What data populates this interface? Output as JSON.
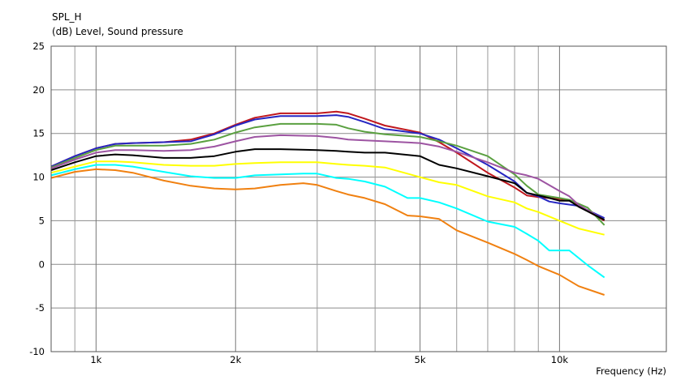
{
  "chart_data": {
    "type": "line",
    "title": "SPL_H",
    "ylabel": "(dB)  Level, Sound pressure",
    "xlabel": "Frequency  (Hz)",
    "x_scale": "log",
    "xlim": [
      800,
      17000
    ],
    "ylim": [
      -10,
      25
    ],
    "x_ticks": [
      {
        "value": 1000,
        "label": "1k"
      },
      {
        "value": 2000,
        "label": "2k"
      },
      {
        "value": 5000,
        "label": "5k"
      },
      {
        "value": 10000,
        "label": "10k"
      }
    ],
    "y_ticks": [
      {
        "value": 25,
        "label": "25"
      },
      {
        "value": 20,
        "label": "20"
      },
      {
        "value": 15,
        "label": "15"
      },
      {
        "value": 10,
        "label": "10"
      },
      {
        "value": 5,
        "label": "5"
      },
      {
        "value": 0,
        "label": "0"
      },
      {
        "value": -5,
        "label": "-5"
      },
      {
        "value": -10,
        "label": "-10"
      }
    ],
    "x_gridlines": [
      900,
      1000,
      2000,
      3000,
      4000,
      5000,
      6000,
      7000,
      8000,
      9000,
      10000
    ],
    "y_gridlines": [
      25,
      20,
      15,
      10,
      5,
      0,
      -5,
      -10
    ],
    "grid": true,
    "legend": "none",
    "series": [
      {
        "color": "#c0171d",
        "points": [
          [
            800,
            11.2
          ],
          [
            900,
            12.4
          ],
          [
            1000,
            13.3
          ],
          [
            1100,
            13.8
          ],
          [
            1200,
            13.9
          ],
          [
            1400,
            14.0
          ],
          [
            1600,
            14.3
          ],
          [
            1800,
            15.0
          ],
          [
            2000,
            16.0
          ],
          [
            2200,
            16.8
          ],
          [
            2500,
            17.3
          ],
          [
            3000,
            17.3
          ],
          [
            3300,
            17.5
          ],
          [
            3500,
            17.3
          ],
          [
            3800,
            16.7
          ],
          [
            4200,
            15.9
          ],
          [
            5000,
            15.1
          ],
          [
            5500,
            14.0
          ],
          [
            6000,
            12.8
          ],
          [
            7000,
            10.5
          ],
          [
            8000,
            8.8
          ],
          [
            8500,
            7.9
          ],
          [
            9000,
            7.7
          ],
          [
            10000,
            7.5
          ],
          [
            10500,
            7.3
          ],
          [
            11500,
            6.1
          ],
          [
            12500,
            5.0
          ]
        ]
      },
      {
        "color": "#2626c2",
        "points": [
          [
            800,
            11.2
          ],
          [
            900,
            12.4
          ],
          [
            1000,
            13.3
          ],
          [
            1100,
            13.8
          ],
          [
            1200,
            13.9
          ],
          [
            1400,
            14.0
          ],
          [
            1600,
            14.1
          ],
          [
            1800,
            14.9
          ],
          [
            2000,
            15.9
          ],
          [
            2200,
            16.6
          ],
          [
            2500,
            17.0
          ],
          [
            3000,
            17.0
          ],
          [
            3300,
            17.1
          ],
          [
            3500,
            16.9
          ],
          [
            3800,
            16.3
          ],
          [
            4200,
            15.5
          ],
          [
            5000,
            15.0
          ],
          [
            5500,
            14.3
          ],
          [
            6000,
            13.3
          ],
          [
            7000,
            11.4
          ],
          [
            8000,
            9.5
          ],
          [
            8500,
            8.2
          ],
          [
            9000,
            7.8
          ],
          [
            9500,
            7.2
          ],
          [
            10000,
            7.0
          ],
          [
            11000,
            6.7
          ],
          [
            12500,
            5.3
          ]
        ]
      },
      {
        "color": "#5aa040",
        "points": [
          [
            800,
            11.1
          ],
          [
            900,
            12.2
          ],
          [
            1000,
            13.1
          ],
          [
            1100,
            13.6
          ],
          [
            1200,
            13.6
          ],
          [
            1400,
            13.6
          ],
          [
            1600,
            13.8
          ],
          [
            1800,
            14.3
          ],
          [
            2000,
            15.1
          ],
          [
            2200,
            15.7
          ],
          [
            2500,
            16.1
          ],
          [
            3000,
            16.1
          ],
          [
            3300,
            16.0
          ],
          [
            3500,
            15.6
          ],
          [
            3800,
            15.2
          ],
          [
            4200,
            14.9
          ],
          [
            5000,
            14.6
          ],
          [
            5500,
            14.1
          ],
          [
            6000,
            13.6
          ],
          [
            7000,
            12.4
          ],
          [
            8000,
            10.3
          ],
          [
            8500,
            9.0
          ],
          [
            9000,
            8.0
          ],
          [
            10000,
            7.6
          ],
          [
            10500,
            7.4
          ],
          [
            11500,
            6.5
          ],
          [
            12500,
            4.5
          ]
        ]
      },
      {
        "color": "#9d54a2",
        "points": [
          [
            800,
            11.0
          ],
          [
            900,
            12.0
          ],
          [
            1000,
            12.8
          ],
          [
            1100,
            13.1
          ],
          [
            1200,
            13.1
          ],
          [
            1400,
            13.0
          ],
          [
            1600,
            13.1
          ],
          [
            1800,
            13.5
          ],
          [
            2000,
            14.1
          ],
          [
            2200,
            14.6
          ],
          [
            2500,
            14.8
          ],
          [
            3000,
            14.7
          ],
          [
            3300,
            14.5
          ],
          [
            3500,
            14.3
          ],
          [
            3800,
            14.2
          ],
          [
            4200,
            14.1
          ],
          [
            5000,
            13.9
          ],
          [
            5500,
            13.5
          ],
          [
            6000,
            12.9
          ],
          [
            7000,
            11.7
          ],
          [
            8000,
            10.5
          ],
          [
            8500,
            10.2
          ],
          [
            9000,
            9.8
          ],
          [
            10000,
            8.4
          ],
          [
            10500,
            7.8
          ],
          [
            11000,
            6.8
          ],
          [
            12500,
            5.1
          ]
        ]
      },
      {
        "color": "#000000",
        "points": [
          [
            800,
            10.8
          ],
          [
            900,
            11.7
          ],
          [
            1000,
            12.4
          ],
          [
            1100,
            12.6
          ],
          [
            1200,
            12.5
          ],
          [
            1400,
            12.2
          ],
          [
            1600,
            12.2
          ],
          [
            1800,
            12.4
          ],
          [
            2000,
            12.9
          ],
          [
            2200,
            13.2
          ],
          [
            2500,
            13.2
          ],
          [
            3000,
            13.1
          ],
          [
            3300,
            13.0
          ],
          [
            3500,
            12.9
          ],
          [
            3800,
            12.8
          ],
          [
            4200,
            12.8
          ],
          [
            5000,
            12.4
          ],
          [
            5500,
            11.4
          ],
          [
            6000,
            11.0
          ],
          [
            7000,
            10.1
          ],
          [
            8000,
            9.3
          ],
          [
            8500,
            8.2
          ],
          [
            9000,
            7.9
          ],
          [
            9500,
            7.6
          ],
          [
            10000,
            7.3
          ],
          [
            10500,
            7.3
          ],
          [
            11000,
            6.6
          ],
          [
            12500,
            5.1
          ]
        ]
      },
      {
        "color": "#ffff00",
        "points": [
          [
            800,
            10.5
          ],
          [
            900,
            11.2
          ],
          [
            1000,
            11.8
          ],
          [
            1100,
            11.8
          ],
          [
            1200,
            11.7
          ],
          [
            1400,
            11.4
          ],
          [
            1600,
            11.3
          ],
          [
            1800,
            11.3
          ],
          [
            2000,
            11.5
          ],
          [
            2200,
            11.6
          ],
          [
            2500,
            11.7
          ],
          [
            3000,
            11.7
          ],
          [
            3300,
            11.5
          ],
          [
            3500,
            11.4
          ],
          [
            3800,
            11.3
          ],
          [
            4200,
            11.1
          ],
          [
            5000,
            10.0
          ],
          [
            5500,
            9.4
          ],
          [
            6000,
            9.1
          ],
          [
            7000,
            7.8
          ],
          [
            8000,
            7.1
          ],
          [
            8500,
            6.4
          ],
          [
            9000,
            6.0
          ],
          [
            10000,
            5.0
          ],
          [
            11000,
            4.1
          ],
          [
            12500,
            3.4
          ]
        ]
      },
      {
        "color": "#00ffff",
        "points": [
          [
            800,
            10.2
          ],
          [
            900,
            10.9
          ],
          [
            1000,
            11.4
          ],
          [
            1100,
            11.4
          ],
          [
            1200,
            11.2
          ],
          [
            1400,
            10.6
          ],
          [
            1600,
            10.1
          ],
          [
            1800,
            9.9
          ],
          [
            2000,
            9.9
          ],
          [
            2200,
            10.2
          ],
          [
            2500,
            10.3
          ],
          [
            2800,
            10.4
          ],
          [
            3000,
            10.4
          ],
          [
            3300,
            9.9
          ],
          [
            3500,
            9.8
          ],
          [
            3800,
            9.5
          ],
          [
            4200,
            8.9
          ],
          [
            4700,
            7.6
          ],
          [
            5000,
            7.6
          ],
          [
            5500,
            7.1
          ],
          [
            6000,
            6.4
          ],
          [
            7000,
            4.9
          ],
          [
            8000,
            4.3
          ],
          [
            8500,
            3.5
          ],
          [
            9000,
            2.7
          ],
          [
            9500,
            1.6
          ],
          [
            10000,
            1.6
          ],
          [
            10500,
            1.6
          ],
          [
            11500,
            -0.1
          ],
          [
            12500,
            -1.5
          ]
        ]
      },
      {
        "color": "#f08010",
        "points": [
          [
            800,
            9.9
          ],
          [
            900,
            10.6
          ],
          [
            1000,
            10.9
          ],
          [
            1100,
            10.8
          ],
          [
            1200,
            10.5
          ],
          [
            1400,
            9.6
          ],
          [
            1600,
            9.0
          ],
          [
            1800,
            8.7
          ],
          [
            2000,
            8.6
          ],
          [
            2200,
            8.7
          ],
          [
            2500,
            9.1
          ],
          [
            2800,
            9.3
          ],
          [
            3000,
            9.1
          ],
          [
            3300,
            8.4
          ],
          [
            3500,
            8.0
          ],
          [
            3800,
            7.6
          ],
          [
            4200,
            6.9
          ],
          [
            4700,
            5.6
          ],
          [
            5000,
            5.5
          ],
          [
            5500,
            5.2
          ],
          [
            6000,
            3.9
          ],
          [
            7000,
            2.5
          ],
          [
            8000,
            1.2
          ],
          [
            8500,
            0.5
          ],
          [
            9000,
            -0.2
          ],
          [
            10000,
            -1.2
          ],
          [
            11000,
            -2.5
          ],
          [
            12500,
            -3.5
          ]
        ]
      }
    ]
  }
}
